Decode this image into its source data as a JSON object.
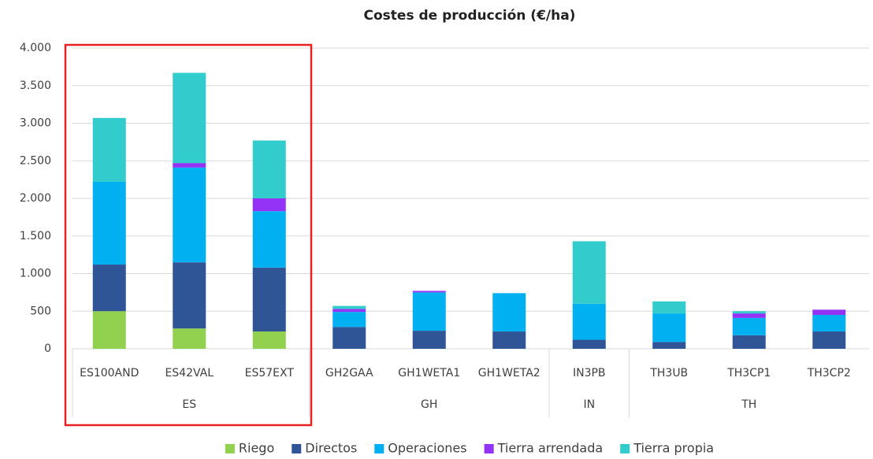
{
  "chart_data": {
    "type": "stacked_bar",
    "title": "Costes de producción (€/ha)",
    "categories": [
      "ES100AND",
      "ES42VAL",
      "ES57EXT",
      "GH2GAA",
      "GH1WETA1",
      "GH1WETA2",
      "IN3PB",
      "TH3UB",
      "TH3CP1",
      "TH3CP2"
    ],
    "group_labels": [
      "ES",
      null,
      null,
      "GH",
      null,
      null,
      "IN",
      "TH",
      null,
      null
    ],
    "series": [
      {
        "name": "Riego",
        "color": "#92d050",
        "values": [
          500,
          270,
          230,
          0,
          0,
          0,
          0,
          0,
          0,
          0
        ]
      },
      {
        "name": "Directos",
        "color": "#2f5597",
        "values": [
          620,
          880,
          850,
          290,
          240,
          230,
          120,
          90,
          180,
          230
        ]
      },
      {
        "name": "Operaciones",
        "color": "#00b0f0",
        "values": [
          1100,
          1260,
          750,
          200,
          510,
          510,
          480,
          380,
          230,
          220
        ]
      },
      {
        "name": "Tierra arrendada",
        "color": "#9233f5",
        "values": [
          0,
          60,
          170,
          40,
          20,
          0,
          0,
          0,
          60,
          70
        ]
      },
      {
        "name": "Tierra propia",
        "color": "#33cccc",
        "values": [
          850,
          1200,
          770,
          40,
          0,
          0,
          830,
          160,
          30,
          0
        ]
      }
    ],
    "ylim": [
      0,
      4000
    ],
    "yticks": [
      0,
      500,
      {
        "value": 1000,
        "label": "1.000"
      },
      {
        "value": 1500,
        "label": "1.500"
      },
      {
        "value": 2000,
        "label": "2.000"
      },
      {
        "value": 2500,
        "label": "2.500"
      },
      {
        "value": 3000,
        "label": "3.000"
      },
      {
        "value": 3500,
        "label": "3.500"
      },
      {
        "value": 4000,
        "label": "4.000"
      }
    ],
    "grid": true,
    "legend": "bottom"
  }
}
